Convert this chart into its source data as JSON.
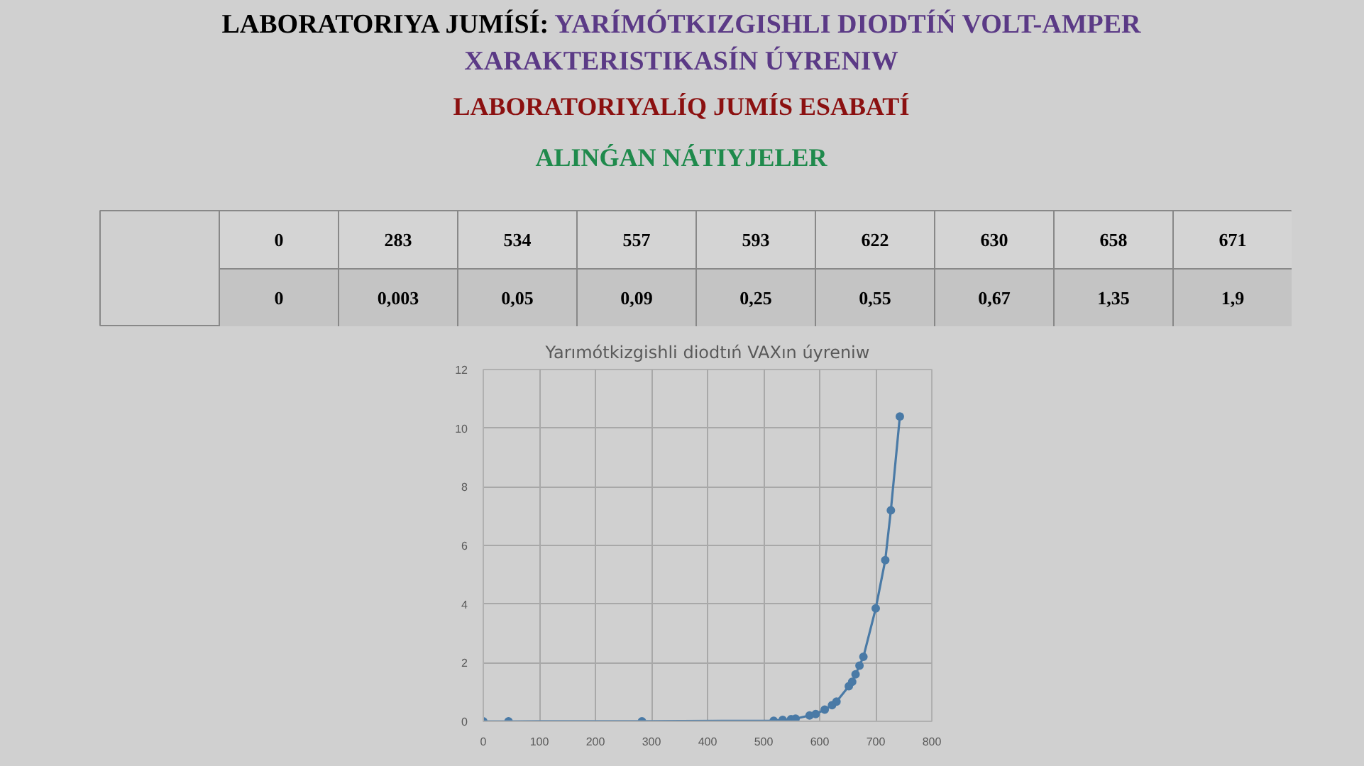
{
  "chart_data": [
    {
      "type": "other",
      "title": "LABORATORIYA JUMÍSÍ:",
      "subtitle": "YARÍMÓTKIZGISHLI DIODTÍŃ VOLT-AMPER XARAKTERISTIKASÍN ÚYRENIW",
      "annotations": [
        "LABORATORIYALÍQ JUMÍS ESABATÍ",
        "ALINǴAN NÁTIYJELER"
      ],
      "categories": [
        "0",
        "283",
        "534",
        "557",
        "593",
        "622",
        "630",
        "658",
        "671"
      ],
      "value_labels": [
        "0",
        "0,003",
        "0,05",
        "0,09",
        "0,25",
        "0,55",
        "0,67",
        "1,35",
        "1,9"
      ]
    },
    {
      "type": "line",
      "title": "Yarımótkizgishli diodtıń VAXın úyreniw",
      "x": [
        0,
        45,
        283,
        518,
        534,
        549,
        557,
        582,
        593,
        609,
        622,
        630,
        652,
        658,
        664,
        671,
        678,
        700,
        717,
        727,
        743
      ],
      "series": [
        {
          "color": "#4a7aa6",
          "values": [
            0,
            0,
            0.003,
            0.02,
            0.05,
            0.07,
            0.09,
            0.2,
            0.25,
            0.4,
            0.55,
            0.67,
            1.2,
            1.35,
            1.6,
            1.9,
            2.2,
            3.85,
            5.5,
            7.2,
            10.4
          ]
        }
      ],
      "xlim": [
        0,
        800
      ],
      "ylim": [
        0,
        12
      ],
      "xticks": [
        0,
        100,
        200,
        300,
        400,
        500,
        600,
        700,
        800
      ],
      "yticks": [
        0,
        2,
        4,
        6,
        8,
        10,
        12
      ],
      "grid": true,
      "marker": "circle",
      "line_style": "solid"
    }
  ]
}
